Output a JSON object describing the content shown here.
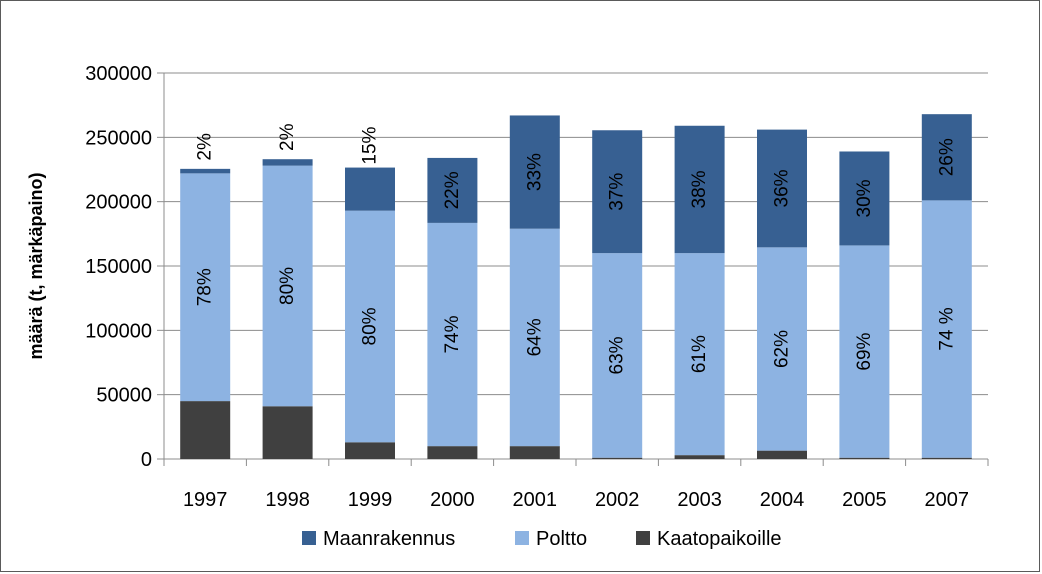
{
  "chart_data": {
    "type": "bar",
    "stacked": true,
    "title": "",
    "xlabel": "",
    "ylabel": "määrä  (t, märkäpaino)",
    "ylim": [
      0,
      300000
    ],
    "yticks": [
      0,
      50000,
      100000,
      150000,
      200000,
      250000,
      300000
    ],
    "ytick_labels": [
      "0",
      "50000",
      "100000",
      "150000",
      "200000",
      "250000",
      "300000"
    ],
    "grid": true,
    "legend_position": "bottom",
    "categories": [
      "1997",
      "1998",
      "1999",
      "2000",
      "2001",
      "2002",
      "2003",
      "2004",
      "2005",
      "2007"
    ],
    "series": [
      {
        "name": "Kaatopaikoille",
        "color": "#404040",
        "values": [
          45000,
          41000,
          13000,
          10000,
          10000,
          1000,
          3000,
          6500,
          1000,
          1000
        ],
        "labels": [
          "",
          "",
          "",
          "",
          "",
          "",
          "",
          "",
          "",
          ""
        ]
      },
      {
        "name": "Poltto",
        "color": "#8db3e2",
        "values": [
          177000,
          187000,
          180000,
          173500,
          169000,
          159000,
          157000,
          158000,
          165000,
          200000
        ],
        "labels": [
          "78%",
          "80%",
          "80%",
          "74%",
          "64%",
          "63%",
          "61%",
          "62%",
          "69%",
          "74 %"
        ]
      },
      {
        "name": "Maanrakennus",
        "color": "#376092",
        "values": [
          3500,
          5000,
          33500,
          50500,
          88000,
          95500,
          99000,
          91500,
          73000,
          67000
        ],
        "labels": [
          "2%",
          "2%",
          "15%",
          "22%",
          "33%",
          "37%",
          "38%",
          "36%",
          "30%",
          "26%"
        ]
      }
    ],
    "legend": [
      "Maanrakennus",
      "Poltto",
      "Kaatopaikoille"
    ]
  }
}
